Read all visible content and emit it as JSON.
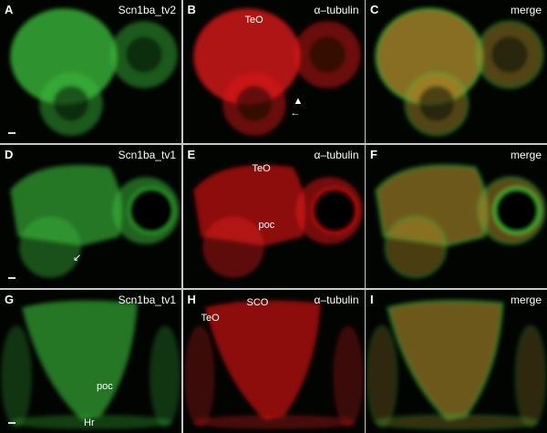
{
  "colors": {
    "green": "#3cc23c",
    "red": "#e81818",
    "merge": "#b4922c"
  },
  "rows": [
    {
      "panels": [
        {
          "letter": "A",
          "label": "Scn1ba_tv2",
          "channel": "green"
        },
        {
          "letter": "B",
          "label": "α–tubulin",
          "channel": "red",
          "annotations": [
            "TeO",
            "▲",
            "←"
          ]
        },
        {
          "letter": "C",
          "label": "merge",
          "channel": "merge"
        }
      ]
    },
    {
      "panels": [
        {
          "letter": "D",
          "label": "Scn1ba_tv1",
          "channel": "green",
          "annotations": [
            "↙"
          ]
        },
        {
          "letter": "E",
          "label": "α–tubulin",
          "channel": "red",
          "annotations": [
            "TeO",
            "poc"
          ]
        },
        {
          "letter": "F",
          "label": "merge",
          "channel": "merge"
        }
      ]
    },
    {
      "panels": [
        {
          "letter": "G",
          "label": "Scn1ba_tv1",
          "channel": "green",
          "annotations": [
            "poc",
            "Hr"
          ]
        },
        {
          "letter": "H",
          "label": "α–tubulin",
          "channel": "red",
          "annotations": [
            "SCO",
            "TeO"
          ]
        },
        {
          "letter": "I",
          "label": "merge",
          "channel": "merge"
        }
      ]
    }
  ]
}
